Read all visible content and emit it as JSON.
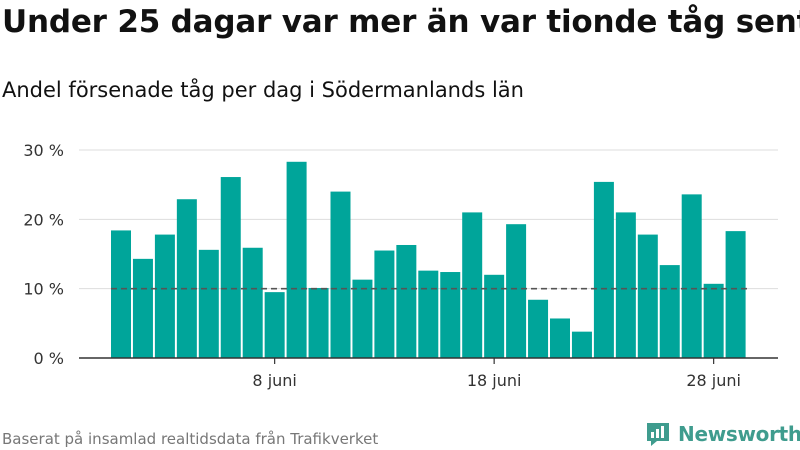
{
  "title": "Under 25 dagar var mer än var tionde tåg sent",
  "subtitle": "Andel försenade tåg per dag i Södermanlands län",
  "source": "Baserat på insamlad realtidsdata från Trafikverket",
  "brand": {
    "name": "Newsworthy",
    "logo_icon": "newsworthy-logo-icon"
  },
  "colors": {
    "bar": "#00a59a",
    "reference_line": "#555555",
    "grid": "#dddddd",
    "brand": "#3f9c8e"
  },
  "chart_data": {
    "type": "bar",
    "title": "",
    "xlabel": "",
    "ylabel": "",
    "x_tick_labels": [
      {
        "day": 8,
        "label": "8 juni"
      },
      {
        "day": 18,
        "label": "18 juni"
      },
      {
        "day": 28,
        "label": "28 juni"
      }
    ],
    "y_ticks": [
      0,
      10,
      20,
      30
    ],
    "y_tick_labels": [
      "0 %",
      "10 %",
      "20 %",
      "30 %"
    ],
    "ylim": [
      0,
      30
    ],
    "grid": true,
    "reference_line": {
      "value": 10,
      "style": "dashed"
    },
    "days": [
      1,
      2,
      3,
      4,
      5,
      6,
      7,
      8,
      9,
      10,
      11,
      12,
      13,
      14,
      15,
      16,
      17,
      18,
      19,
      20,
      21,
      22,
      23,
      24,
      25,
      26,
      27,
      28,
      29,
      30
    ],
    "values": [
      18.4,
      14.3,
      17.8,
      22.9,
      15.6,
      26.1,
      15.9,
      9.5,
      28.3,
      10.1,
      24.0,
      11.3,
      15.5,
      16.3,
      12.6,
      12.4,
      21.0,
      12.0,
      19.3,
      8.4,
      5.7,
      3.8,
      25.4,
      21.0,
      17.8,
      13.4,
      23.6,
      10.7,
      18.3,
      null
    ]
  }
}
